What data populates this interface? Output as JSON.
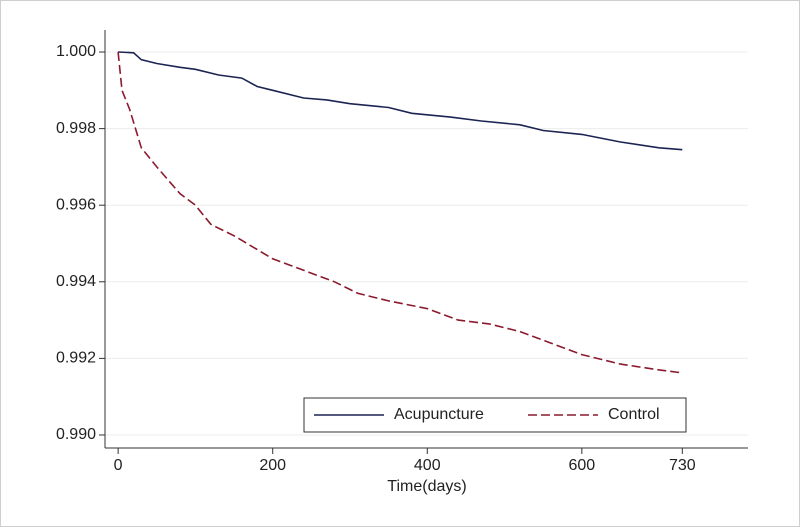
{
  "chart_data": {
    "type": "line",
    "xlabel": "Time(days)",
    "xlim": [
      -17,
      815
    ],
    "ylim": [
      0.98966,
      1.000575
    ],
    "xticks": [
      0,
      200,
      400,
      600,
      730
    ],
    "yticks": [
      {
        "value": 0.99,
        "label": "0.990"
      },
      {
        "value": 0.992,
        "label": "0.992"
      },
      {
        "value": 0.994,
        "label": "0.994"
      },
      {
        "value": 0.996,
        "label": "0.996"
      },
      {
        "value": 0.998,
        "label": "0.998"
      },
      {
        "value": 1.0,
        "label": "1.000"
      }
    ],
    "grid": true,
    "legend": "lower-right",
    "series": [
      {
        "name": "Acupuncture",
        "color": "#1c2452",
        "linestyle": "solid",
        "x": [
          0,
          20,
          30,
          50,
          80,
          100,
          130,
          160,
          180,
          200,
          240,
          270,
          300,
          350,
          380,
          430,
          470,
          520,
          550,
          600,
          650,
          700,
          730
        ],
        "values": [
          1.0,
          0.99998,
          0.9998,
          0.9997,
          0.9996,
          0.99955,
          0.9994,
          0.99932,
          0.9991,
          0.999,
          0.9988,
          0.99875,
          0.99865,
          0.99855,
          0.9984,
          0.9983,
          0.9982,
          0.9981,
          0.99795,
          0.99785,
          0.99765,
          0.9975,
          0.99745
        ]
      },
      {
        "name": "Control",
        "color": "#8b1a2e",
        "linestyle": "dashed",
        "x": [
          0,
          5,
          15,
          30,
          50,
          80,
          100,
          120,
          150,
          200,
          240,
          280,
          310,
          350,
          400,
          440,
          480,
          520,
          560,
          600,
          650,
          700,
          730
        ],
        "values": [
          1.0,
          0.999,
          0.9985,
          0.9975,
          0.997,
          0.9963,
          0.996,
          0.9955,
          0.9952,
          0.9946,
          0.9943,
          0.994,
          0.9937,
          0.9935,
          0.9933,
          0.993,
          0.9929,
          0.9927,
          0.9924,
          0.9921,
          0.99185,
          0.9917,
          0.99162
        ]
      }
    ]
  }
}
